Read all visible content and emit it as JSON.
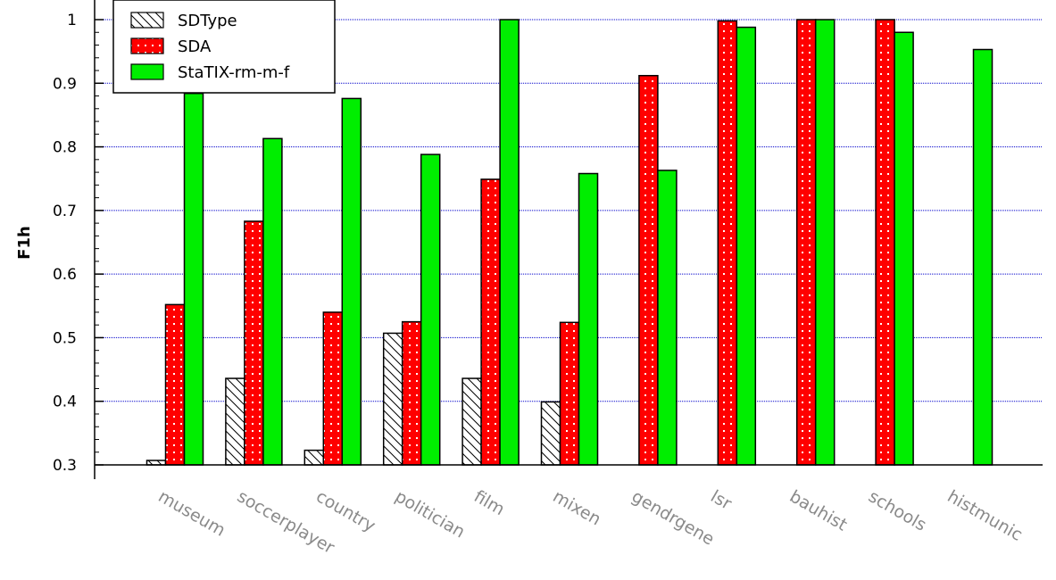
{
  "chart_data": {
    "type": "bar",
    "title": "",
    "xlabel": "",
    "ylabel": "F1h",
    "ylim": [
      0.3,
      1.0
    ],
    "yticks": [
      "0.3",
      "0.4",
      "0.5",
      "0.6",
      "0.7",
      "0.8",
      "0.9",
      "1"
    ],
    "grid": true,
    "legend_position": "top-left",
    "categories": [
      "museum",
      "soccerplayer",
      "country",
      "politician",
      "film",
      "mixen",
      "gendrgene",
      "lsr",
      "bauhist",
      "schools",
      "histmunic"
    ],
    "series": [
      {
        "name": "SDType",
        "style": "hatched",
        "color": "#ffffff",
        "values": [
          0.307,
          0.436,
          0.323,
          0.507,
          0.436,
          0.399,
          null,
          null,
          null,
          null,
          null
        ]
      },
      {
        "name": "SDA",
        "style": "dotted",
        "color": "#ff0000",
        "values": [
          0.552,
          0.683,
          0.54,
          0.525,
          0.749,
          0.524,
          0.912,
          0.998,
          1.0,
          1.0,
          null
        ]
      },
      {
        "name": "StaTIX-rm-m-f",
        "style": "solid",
        "color": "#00ff00",
        "values": [
          0.884,
          0.813,
          0.876,
          0.788,
          1.0,
          0.758,
          0.763,
          0.988,
          1.0,
          0.98,
          0.953
        ]
      }
    ]
  }
}
